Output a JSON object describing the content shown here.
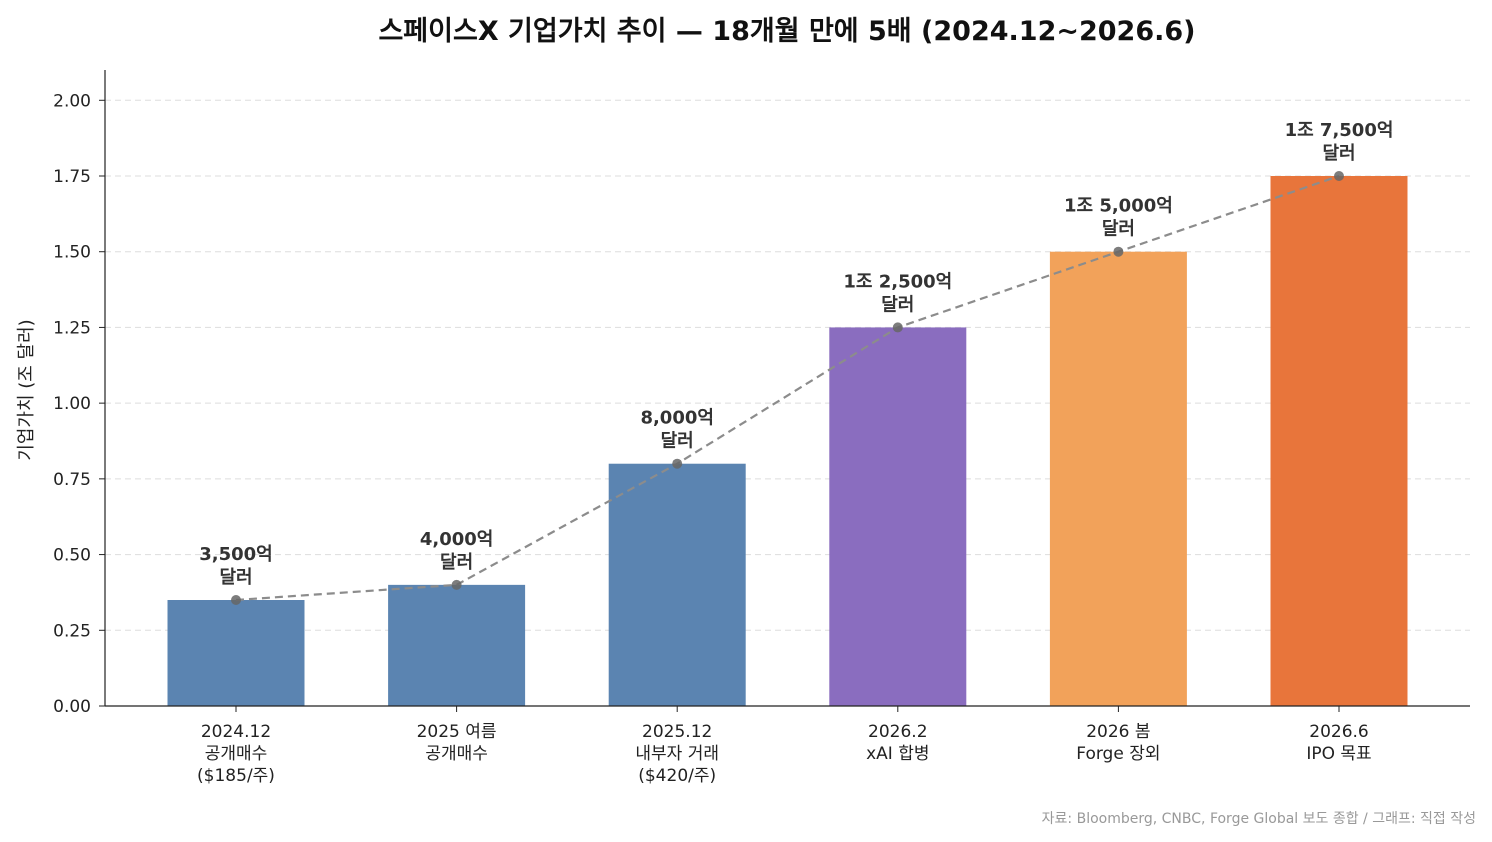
{
  "chart_data": {
    "type": "bar",
    "title": "스페이스X 기업가치 추이 — 18개월 만에 5배 (2024.12~2026.6)",
    "xlabel": "",
    "ylabel": "기업가치 (조 달러)",
    "ylim": [
      0,
      2.1
    ],
    "yticks": [
      "0.00",
      "0.25",
      "0.50",
      "0.75",
      "1.00",
      "1.25",
      "1.50",
      "1.75",
      "2.00"
    ],
    "grid": "y-dashed",
    "categories": [
      [
        "2024.12",
        "공개매수",
        "($185/주)"
      ],
      [
        "2025 여름",
        "공개매수"
      ],
      [
        "2025.12",
        "내부자 거래",
        "($420/주)"
      ],
      [
        "2026.2",
        "xAI 합병"
      ],
      [
        "2026 봄",
        "Forge 장외"
      ],
      [
        "2026.6",
        "IPO 목표"
      ]
    ],
    "values": [
      0.35,
      0.4,
      0.8,
      1.25,
      1.5,
      1.75
    ],
    "data_labels": [
      [
        "3,500억",
        "달러"
      ],
      [
        "4,000억",
        "달러"
      ],
      [
        "8,000억",
        "달러"
      ],
      [
        "1조 2,500억",
        "달러"
      ],
      [
        "1조 5,000억",
        "달러"
      ],
      [
        "1조 7,500억",
        "달러"
      ]
    ],
    "bar_colors": [
      "#5b84b1",
      "#5b84b1",
      "#5b84b1",
      "#8a6dbf",
      "#f2a25a",
      "#e8753b"
    ],
    "trend_line": {
      "style": "dashed",
      "color": "#8c8c8c",
      "values": [
        0.35,
        0.4,
        0.8,
        1.25,
        1.5,
        1.75
      ]
    },
    "source": "자료: Bloomberg, CNBC, Forge Global 보도 종합 / 그래프: 직접 작성"
  }
}
